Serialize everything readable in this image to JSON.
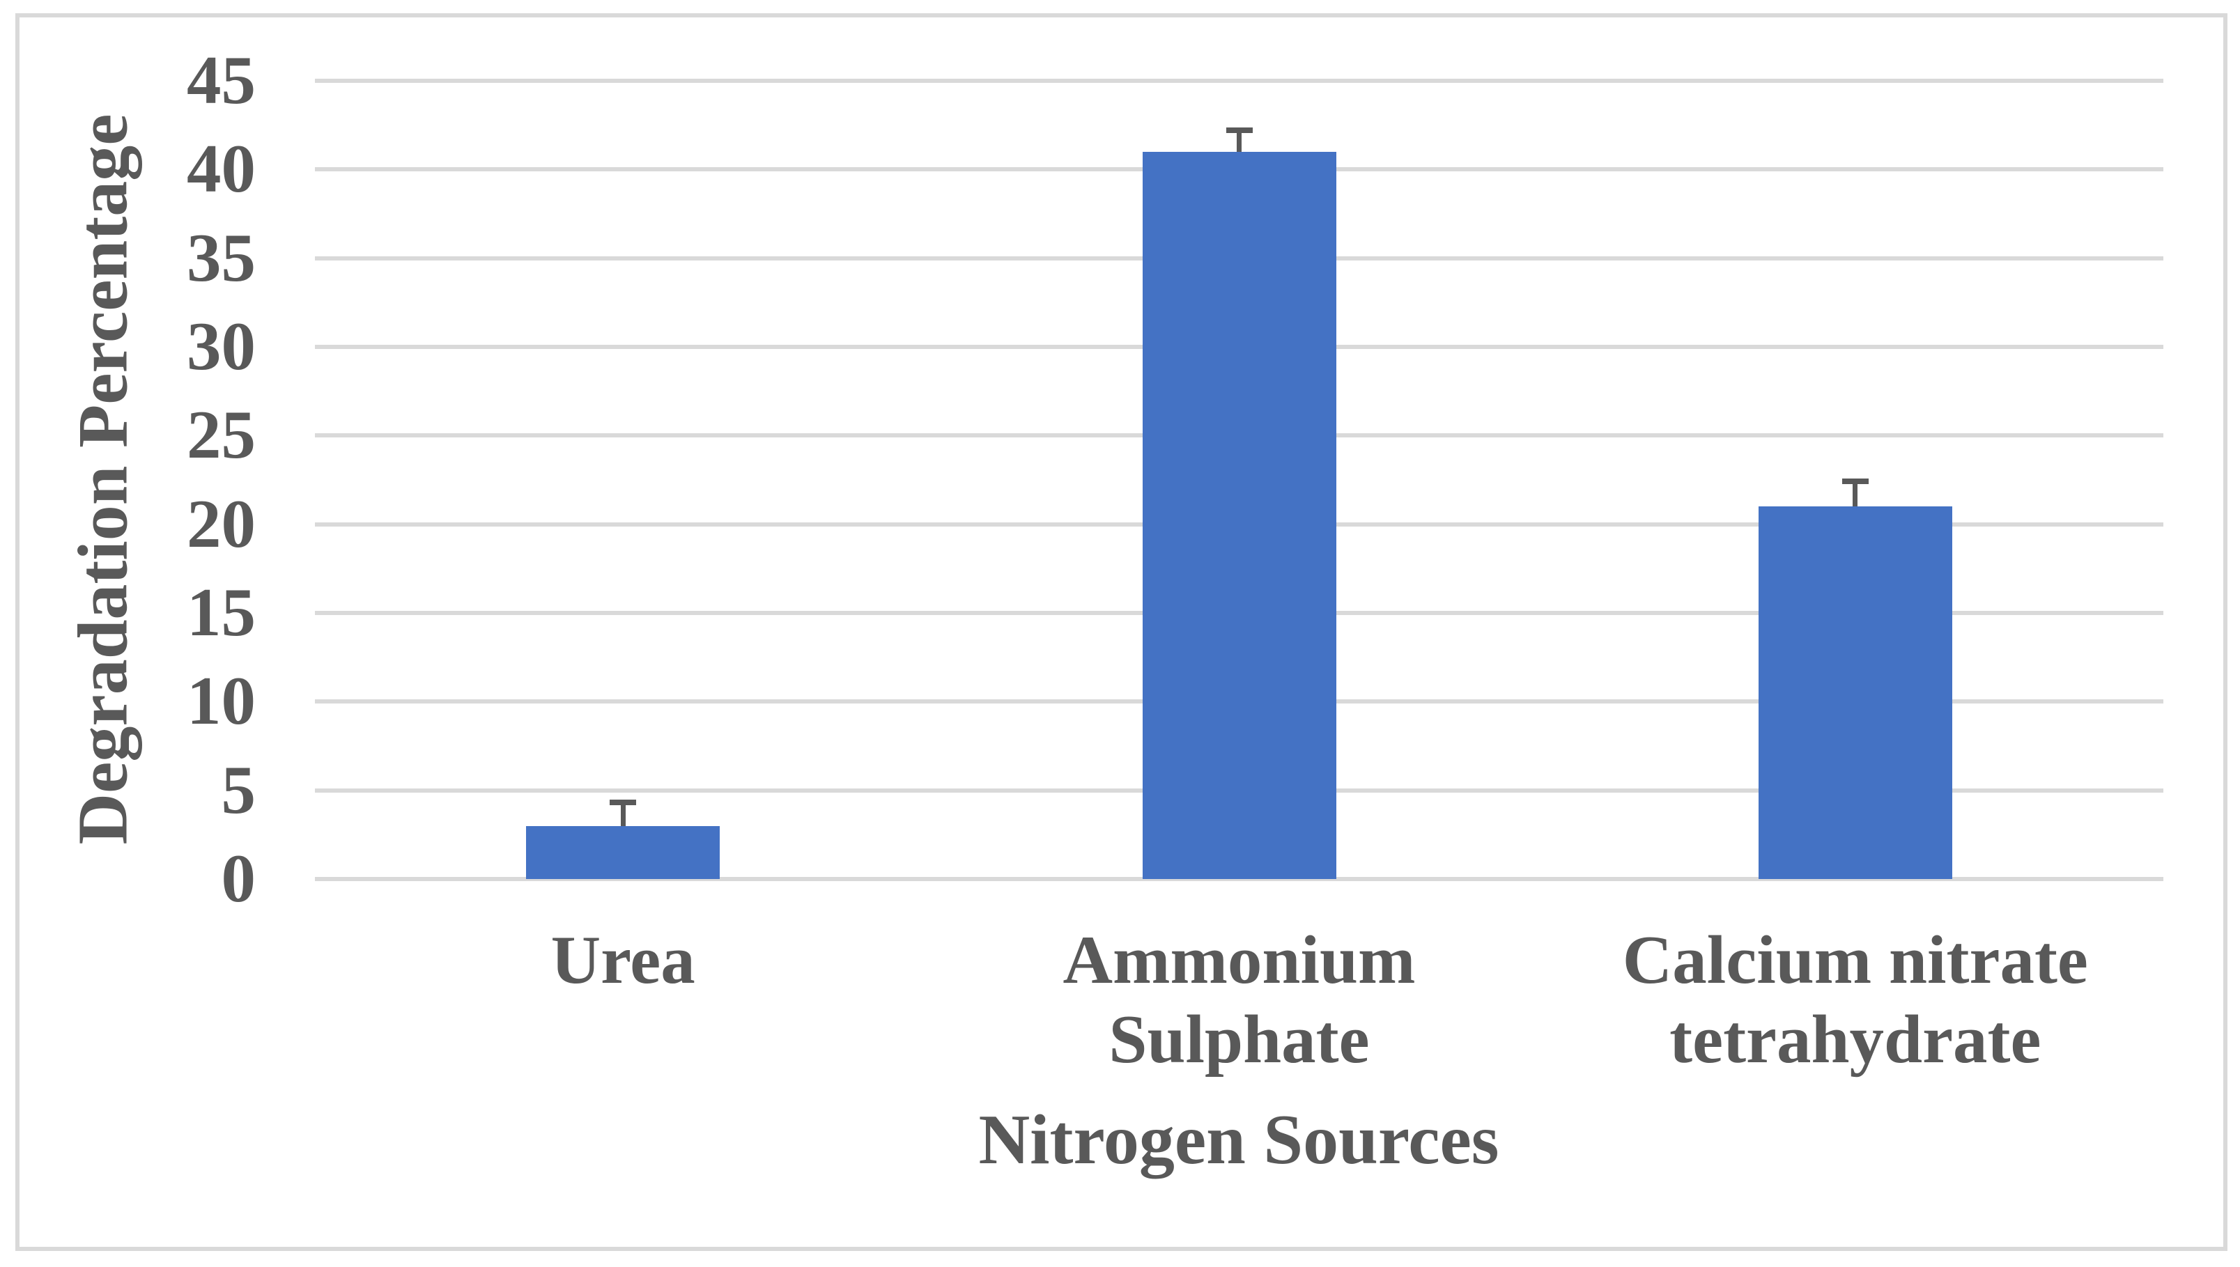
{
  "figure": {
    "background_color": "#FFFFFF",
    "border_color": "#D9D9D9"
  },
  "chart_data": {
    "type": "bar",
    "title": "",
    "xlabel": "Nitrogen Sources",
    "ylabel": "Degradation Percentage",
    "categories": [
      "Urea",
      "Ammonium Sulphate",
      "Calcium nitrate tetrahydrate"
    ],
    "values": [
      3,
      41,
      21
    ],
    "error_plus": [
      1.3,
      1.2,
      1.4
    ],
    "ylim": [
      0,
      45
    ],
    "ytick_step": 5,
    "yticks": [
      0,
      5,
      10,
      15,
      20,
      25,
      30,
      35,
      40,
      45
    ],
    "grid": true,
    "legend_position": "none",
    "bar_color": "#4472C4",
    "error_bar_color": "#595959",
    "gridline_color": "#D9D9D9",
    "text_color": "#595959"
  }
}
